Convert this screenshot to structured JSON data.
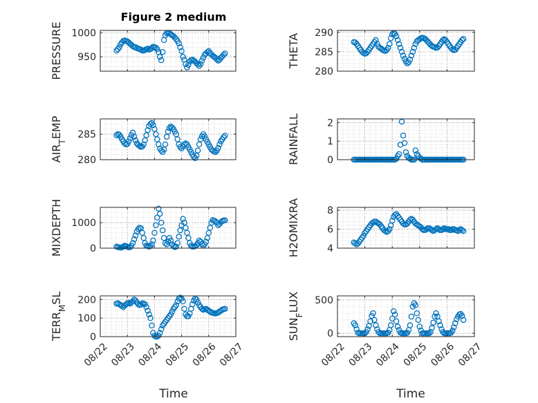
{
  "figure": {
    "title": "Figure 2 medium",
    "time_label": "Time",
    "time_ticks": [
      "08/22",
      "08/23",
      "08/24",
      "08/25",
      "08/26",
      "08/27"
    ],
    "marker_color": "#0072BD"
  },
  "chart_data": [
    {
      "type": "scatter",
      "ylabel": "PRESSURE",
      "ylim": [
        920,
        1005
      ],
      "yticks": [
        950,
        1000
      ],
      "grid": true,
      "minor_grid": true,
      "x": [
        0.6,
        0.65,
        0.7,
        0.75,
        0.8,
        0.85,
        0.9,
        0.95,
        1.0,
        1.05,
        1.1,
        1.15,
        1.2,
        1.25,
        1.3,
        1.35,
        1.4,
        1.45,
        1.5,
        1.55,
        1.6,
        1.65,
        1.7,
        1.75,
        1.8,
        1.85,
        1.9,
        1.95,
        2.0,
        2.05,
        2.1,
        2.15,
        2.2,
        2.25,
        2.3,
        2.35,
        2.4,
        2.45,
        2.5,
        2.55,
        2.6,
        2.65,
        2.7,
        2.75,
        2.8,
        2.85,
        2.9,
        2.95,
        3.0,
        3.05,
        3.1,
        3.15,
        3.2,
        3.25,
        3.3,
        3.35,
        3.4,
        3.45,
        3.5,
        3.55,
        3.6,
        3.65,
        3.7,
        3.75,
        3.8,
        3.85,
        3.9,
        3.95,
        4.0,
        4.05,
        4.1,
        4.15,
        4.2,
        4.25,
        4.3,
        4.35,
        4.4,
        4.45,
        4.5,
        4.55,
        4.6
      ],
      "y": [
        963,
        966,
        970,
        976,
        980,
        983,
        984,
        983,
        982,
        980,
        977,
        975,
        972,
        970,
        970,
        968,
        967,
        966,
        965,
        963,
        963,
        964,
        966,
        967,
        965,
        966,
        968,
        971,
        970,
        969,
        966,
        960,
        950,
        943,
        960,
        985,
        995,
        999,
        1000,
        999,
        997,
        995,
        993,
        990,
        987,
        983,
        978,
        970,
        962,
        950,
        944,
        935,
        928,
        933,
        940,
        943,
        944,
        942,
        940,
        937,
        934,
        931,
        935,
        942,
        948,
        954,
        957,
        960,
        962,
        958,
        955,
        952,
        950,
        948,
        945,
        942,
        944,
        948,
        951,
        954,
        957
      ]
    },
    {
      "type": "scatter",
      "ylabel": "THETA",
      "ylim": [
        280,
        290.5
      ],
      "yticks": [
        280,
        285,
        290
      ],
      "grid": true,
      "minor_grid": true,
      "x": [
        0.6,
        0.65,
        0.7,
        0.75,
        0.8,
        0.85,
        0.9,
        0.95,
        1.0,
        1.05,
        1.1,
        1.15,
        1.2,
        1.25,
        1.3,
        1.35,
        1.4,
        1.45,
        1.5,
        1.55,
        1.6,
        1.65,
        1.7,
        1.75,
        1.8,
        1.85,
        1.9,
        1.95,
        2.0,
        2.05,
        2.1,
        2.15,
        2.2,
        2.25,
        2.3,
        2.35,
        2.4,
        2.45,
        2.5,
        2.55,
        2.6,
        2.65,
        2.7,
        2.75,
        2.8,
        2.85,
        2.9,
        2.95,
        3.0,
        3.05,
        3.1,
        3.15,
        3.2,
        3.25,
        3.3,
        3.35,
        3.4,
        3.45,
        3.5,
        3.55,
        3.6,
        3.65,
        3.7,
        3.75,
        3.8,
        3.85,
        3.9,
        3.95,
        4.0,
        4.05,
        4.1,
        4.15,
        4.2,
        4.25,
        4.3,
        4.35,
        4.4,
        4.45,
        4.5,
        4.55,
        4.6
      ],
      "y": [
        287.5,
        287.4,
        287.0,
        286.5,
        286.0,
        285.5,
        285.0,
        284.7,
        284.5,
        284.6,
        285.0,
        285.5,
        286.0,
        286.5,
        287.0,
        287.5,
        288.0,
        287.0,
        286.3,
        286.0,
        285.8,
        285.5,
        285.3,
        285.2,
        285.5,
        286.0,
        287.0,
        288.5,
        289.5,
        289.8,
        289.6,
        289.0,
        288.0,
        287.0,
        286.0,
        285.0,
        284.0,
        283.2,
        282.5,
        282.0,
        282.3,
        283.0,
        284.0,
        285.0,
        286.0,
        287.0,
        287.7,
        288.0,
        288.2,
        288.5,
        288.6,
        288.5,
        288.3,
        288.0,
        287.6,
        287.2,
        286.8,
        286.5,
        286.3,
        286.2,
        286.0,
        286.1,
        286.5,
        287.0,
        287.5,
        288.0,
        288.2,
        288.0,
        287.5,
        287.0,
        286.5,
        286.0,
        285.6,
        285.4,
        285.5,
        286.0,
        286.5,
        287.0,
        287.5,
        288.0,
        288.3
      ]
    },
    {
      "type": "scatter",
      "ylabel": "AIR_TEMP",
      "ylim": [
        280,
        288
      ],
      "yticks": [
        280,
        285
      ],
      "grid": true,
      "minor_grid": true,
      "x": [
        0.6,
        0.65,
        0.7,
        0.75,
        0.8,
        0.85,
        0.9,
        0.95,
        1.0,
        1.05,
        1.1,
        1.15,
        1.2,
        1.25,
        1.3,
        1.35,
        1.4,
        1.45,
        1.5,
        1.55,
        1.6,
        1.65,
        1.7,
        1.75,
        1.8,
        1.85,
        1.9,
        1.95,
        2.0,
        2.05,
        2.1,
        2.15,
        2.2,
        2.25,
        2.3,
        2.35,
        2.4,
        2.45,
        2.5,
        2.55,
        2.6,
        2.65,
        2.7,
        2.75,
        2.8,
        2.85,
        2.9,
        2.95,
        3.0,
        3.05,
        3.1,
        3.15,
        3.2,
        3.25,
        3.3,
        3.35,
        3.4,
        3.45,
        3.5,
        3.55,
        3.6,
        3.65,
        3.7,
        3.75,
        3.8,
        3.85,
        3.9,
        3.95,
        4.0,
        4.05,
        4.1,
        4.15,
        4.2,
        4.25,
        4.3,
        4.35,
        4.4,
        4.45,
        4.5,
        4.55,
        4.6
      ],
      "y": [
        284.8,
        285.0,
        284.9,
        284.5,
        284.0,
        283.6,
        283.2,
        283.0,
        283.1,
        283.6,
        284.2,
        284.8,
        285.3,
        284.5,
        283.8,
        283.2,
        282.9,
        282.7,
        282.5,
        282.6,
        283.0,
        283.8,
        284.8,
        285.8,
        286.6,
        287.0,
        287.2,
        286.8,
        286.0,
        285.0,
        284.0,
        283.0,
        282.2,
        281.8,
        281.5,
        282.0,
        283.0,
        284.5,
        285.5,
        286.2,
        286.5,
        286.3,
        286.0,
        285.5,
        285.0,
        284.0,
        283.0,
        282.5,
        282.2,
        282.6,
        283.0,
        283.2,
        283.0,
        282.5,
        282.0,
        281.5,
        281.0,
        280.6,
        280.3,
        280.8,
        281.8,
        283.0,
        284.0,
        284.6,
        285.0,
        284.6,
        284.0,
        283.5,
        283.0,
        282.5,
        282.0,
        281.8,
        281.6,
        281.5,
        281.8,
        282.3,
        283.0,
        283.6,
        284.0,
        284.4,
        284.7
      ]
    },
    {
      "type": "scatter",
      "ylabel": "RAINFALL",
      "ylim": [
        0,
        2.2
      ],
      "yticks": [
        0,
        1,
        2
      ],
      "grid": true,
      "minor_grid": true,
      "x": [
        0.6,
        0.65,
        0.7,
        0.75,
        0.8,
        0.85,
        0.9,
        0.95,
        1.0,
        1.05,
        1.1,
        1.15,
        1.2,
        1.25,
        1.3,
        1.35,
        1.4,
        1.45,
        1.5,
        1.55,
        1.6,
        1.65,
        1.7,
        1.75,
        1.8,
        1.85,
        1.9,
        1.95,
        2.0,
        2.05,
        2.1,
        2.15,
        2.2,
        2.25,
        2.3,
        2.35,
        2.4,
        2.45,
        2.5,
        2.55,
        2.6,
        2.65,
        2.7,
        2.75,
        2.8,
        2.85,
        2.9,
        2.95,
        3.0,
        3.05,
        3.1,
        3.15,
        3.2,
        3.25,
        3.3,
        3.35,
        3.4,
        3.45,
        3.5,
        3.55,
        3.6,
        3.65,
        3.7,
        3.75,
        3.8,
        3.85,
        3.9,
        3.95,
        4.0,
        4.05,
        4.1,
        4.15,
        4.2,
        4.25,
        4.3,
        4.35,
        4.4,
        4.45,
        4.5,
        4.55,
        4.6
      ],
      "y": [
        0,
        0,
        0,
        0,
        0,
        0,
        0,
        0,
        0,
        0,
        0,
        0,
        0,
        0,
        0,
        0,
        0,
        0,
        0,
        0,
        0,
        0,
        0,
        0,
        0,
        0,
        0,
        0,
        0,
        0,
        0,
        0.05,
        0.2,
        0.3,
        0.8,
        2.05,
        1.3,
        0.9,
        0.4,
        0.2,
        0.1,
        0.05,
        0,
        0,
        0,
        0.5,
        0.3,
        0.2,
        0.1,
        0.05,
        0,
        0,
        0,
        0,
        0,
        0,
        0,
        0,
        0,
        0,
        0,
        0,
        0,
        0,
        0,
        0,
        0,
        0,
        0,
        0,
        0,
        0,
        0,
        0,
        0,
        0,
        0,
        0,
        0,
        0,
        0
      ]
    },
    {
      "type": "scatter",
      "ylabel": "MIXDEPTH",
      "ylim": [
        0,
        1600
      ],
      "yticks": [
        0,
        1000
      ],
      "grid": true,
      "minor_grid": true,
      "x": [
        0.6,
        0.65,
        0.7,
        0.75,
        0.8,
        0.85,
        0.9,
        0.95,
        1.0,
        1.05,
        1.1,
        1.15,
        1.2,
        1.25,
        1.3,
        1.35,
        1.4,
        1.45,
        1.5,
        1.55,
        1.6,
        1.65,
        1.7,
        1.75,
        1.8,
        1.85,
        1.9,
        1.95,
        2.0,
        2.05,
        2.1,
        2.15,
        2.2,
        2.25,
        2.3,
        2.35,
        2.4,
        2.45,
        2.5,
        2.55,
        2.6,
        2.65,
        2.7,
        2.75,
        2.8,
        2.85,
        2.9,
        2.95,
        3.0,
        3.05,
        3.1,
        3.15,
        3.2,
        3.25,
        3.3,
        3.35,
        3.4,
        3.45,
        3.5,
        3.55,
        3.6,
        3.65,
        3.7,
        3.75,
        3.8,
        3.85,
        3.9,
        3.95,
        4.0,
        4.05,
        4.1,
        4.15,
        4.2,
        4.25,
        4.3,
        4.35,
        4.4,
        4.45,
        4.5,
        4.55,
        4.6
      ],
      "y": [
        60,
        40,
        30,
        20,
        30,
        60,
        90,
        80,
        50,
        30,
        40,
        100,
        200,
        350,
        500,
        650,
        750,
        800,
        780,
        600,
        400,
        200,
        100,
        80,
        60,
        80,
        150,
        300,
        600,
        900,
        1200,
        1550,
        1350,
        1000,
        700,
        400,
        200,
        150,
        250,
        400,
        300,
        150,
        80,
        40,
        60,
        200,
        450,
        700,
        900,
        1150,
        1000,
        800,
        600,
        400,
        200,
        100,
        60,
        60,
        80,
        120,
        200,
        300,
        250,
        150,
        100,
        150,
        250,
        400,
        600,
        800,
        1000,
        1100,
        1080,
        1050,
        1000,
        900,
        950,
        1020,
        1060,
        1080,
        1090
      ]
    },
    {
      "type": "scatter",
      "ylabel": "H2OMIXRA",
      "ylim": [
        4,
        8.3
      ],
      "yticks": [
        4,
        6,
        8
      ],
      "grid": true,
      "minor_grid": true,
      "x": [
        0.6,
        0.65,
        0.7,
        0.75,
        0.8,
        0.85,
        0.9,
        0.95,
        1.0,
        1.05,
        1.1,
        1.15,
        1.2,
        1.25,
        1.3,
        1.35,
        1.4,
        1.45,
        1.5,
        1.55,
        1.6,
        1.65,
        1.7,
        1.75,
        1.8,
        1.85,
        1.9,
        1.95,
        2.0,
        2.05,
        2.1,
        2.15,
        2.2,
        2.25,
        2.3,
        2.35,
        2.4,
        2.45,
        2.5,
        2.55,
        2.6,
        2.65,
        2.7,
        2.75,
        2.8,
        2.85,
        2.9,
        2.95,
        3.0,
        3.05,
        3.1,
        3.15,
        3.2,
        3.25,
        3.3,
        3.35,
        3.4,
        3.45,
        3.5,
        3.55,
        3.6,
        3.65,
        3.7,
        3.75,
        3.8,
        3.85,
        3.9,
        3.95,
        4.0,
        4.05,
        4.1,
        4.15,
        4.2,
        4.25,
        4.3,
        4.35,
        4.4,
        4.45,
        4.5,
        4.55,
        4.6
      ],
      "y": [
        4.6,
        4.5,
        4.4,
        4.5,
        4.7,
        4.9,
        5.1,
        5.3,
        5.6,
        5.8,
        6.0,
        6.2,
        6.4,
        6.6,
        6.7,
        6.8,
        6.8,
        6.7,
        6.6,
        6.5,
        6.3,
        6.1,
        5.9,
        5.8,
        5.7,
        5.8,
        6.0,
        6.4,
        6.9,
        7.3,
        7.5,
        7.6,
        7.4,
        7.2,
        7.0,
        6.8,
        6.6,
        6.5,
        6.5,
        6.6,
        6.8,
        7.0,
        7.1,
        7.0,
        6.8,
        6.6,
        6.5,
        6.4,
        6.3,
        6.2,
        6.0,
        5.9,
        5.9,
        6.0,
        6.1,
        6.1,
        6.0,
        5.9,
        5.8,
        5.9,
        6.0,
        6.1,
        6.0,
        5.9,
        5.9,
        6.0,
        6.1,
        6.0,
        6.0,
        6.0,
        5.9,
        5.9,
        6.0,
        6.0,
        5.9,
        5.9,
        5.8,
        5.9,
        6.0,
        5.9,
        5.8
      ]
    },
    {
      "type": "scatter",
      "ylabel": "TERR_MSL",
      "ylim": [
        0,
        220
      ],
      "yticks": [
        0,
        100,
        200
      ],
      "grid": true,
      "minor_grid": true,
      "x": [
        0.6,
        0.65,
        0.7,
        0.75,
        0.8,
        0.85,
        0.9,
        0.95,
        1.0,
        1.05,
        1.1,
        1.15,
        1.2,
        1.25,
        1.3,
        1.35,
        1.4,
        1.45,
        1.5,
        1.55,
        1.6,
        1.65,
        1.7,
        1.75,
        1.8,
        1.85,
        1.9,
        1.95,
        2.0,
        2.05,
        2.1,
        2.15,
        2.2,
        2.25,
        2.3,
        2.35,
        2.4,
        2.45,
        2.5,
        2.55,
        2.6,
        2.65,
        2.7,
        2.75,
        2.8,
        2.85,
        2.9,
        2.95,
        3.0,
        3.05,
        3.1,
        3.15,
        3.2,
        3.25,
        3.3,
        3.35,
        3.4,
        3.45,
        3.5,
        3.55,
        3.6,
        3.65,
        3.7,
        3.75,
        3.8,
        3.85,
        3.9,
        3.95,
        4.0,
        4.05,
        4.1,
        4.15,
        4.2,
        4.25,
        4.3,
        4.35,
        4.4,
        4.45,
        4.5,
        4.55,
        4.6
      ],
      "y": [
        178,
        180,
        175,
        170,
        165,
        160,
        168,
        175,
        180,
        182,
        178,
        185,
        190,
        200,
        195,
        185,
        175,
        170,
        172,
        180,
        178,
        175,
        160,
        140,
        120,
        100,
        60,
        20,
        5,
        0,
        0,
        5,
        20,
        40,
        60,
        70,
        80,
        90,
        100,
        110,
        120,
        135,
        150,
        160,
        170,
        190,
        205,
        210,
        205,
        190,
        150,
        120,
        110,
        110,
        125,
        150,
        175,
        195,
        205,
        200,
        185,
        170,
        160,
        150,
        145,
        148,
        150,
        145,
        140,
        135,
        130,
        128,
        126,
        125,
        127,
        130,
        135,
        140,
        145,
        148,
        150
      ]
    },
    {
      "type": "scatter",
      "ylabel": "SUN_FLUX",
      "ylim": [
        -50,
        560
      ],
      "yticks": [
        0,
        500
      ],
      "grid": true,
      "minor_grid": true,
      "x": [
        0.6,
        0.65,
        0.7,
        0.75,
        0.8,
        0.85,
        0.9,
        0.95,
        1.0,
        1.05,
        1.1,
        1.15,
        1.2,
        1.25,
        1.3,
        1.35,
        1.4,
        1.45,
        1.5,
        1.55,
        1.6,
        1.65,
        1.7,
        1.75,
        1.8,
        1.85,
        1.9,
        1.95,
        2.0,
        2.05,
        2.1,
        2.15,
        2.2,
        2.25,
        2.3,
        2.35,
        2.4,
        2.45,
        2.5,
        2.55,
        2.6,
        2.65,
        2.7,
        2.75,
        2.8,
        2.85,
        2.9,
        2.95,
        3.0,
        3.05,
        3.1,
        3.15,
        3.2,
        3.25,
        3.3,
        3.35,
        3.4,
        3.45,
        3.5,
        3.55,
        3.6,
        3.65,
        3.7,
        3.75,
        3.8,
        3.85,
        3.9,
        3.95,
        4.0,
        4.05,
        4.1,
        4.15,
        4.2,
        4.25,
        4.3,
        4.35,
        4.4,
        4.45,
        4.5,
        4.55,
        4.6
      ],
      "y": [
        150,
        120,
        60,
        10,
        0,
        0,
        0,
        0,
        0,
        20,
        60,
        110,
        180,
        260,
        300,
        200,
        120,
        60,
        20,
        0,
        0,
        0,
        0,
        0,
        0,
        10,
        50,
        120,
        220,
        330,
        280,
        180,
        100,
        50,
        10,
        0,
        0,
        0,
        0,
        10,
        50,
        120,
        250,
        400,
        450,
        420,
        300,
        200,
        100,
        40,
        0,
        0,
        0,
        0,
        0,
        0,
        20,
        80,
        160,
        250,
        300,
        250,
        180,
        120,
        60,
        20,
        0,
        0,
        0,
        0,
        0,
        10,
        40,
        90,
        150,
        210,
        250,
        280,
        290,
        260,
        200
      ]
    }
  ]
}
